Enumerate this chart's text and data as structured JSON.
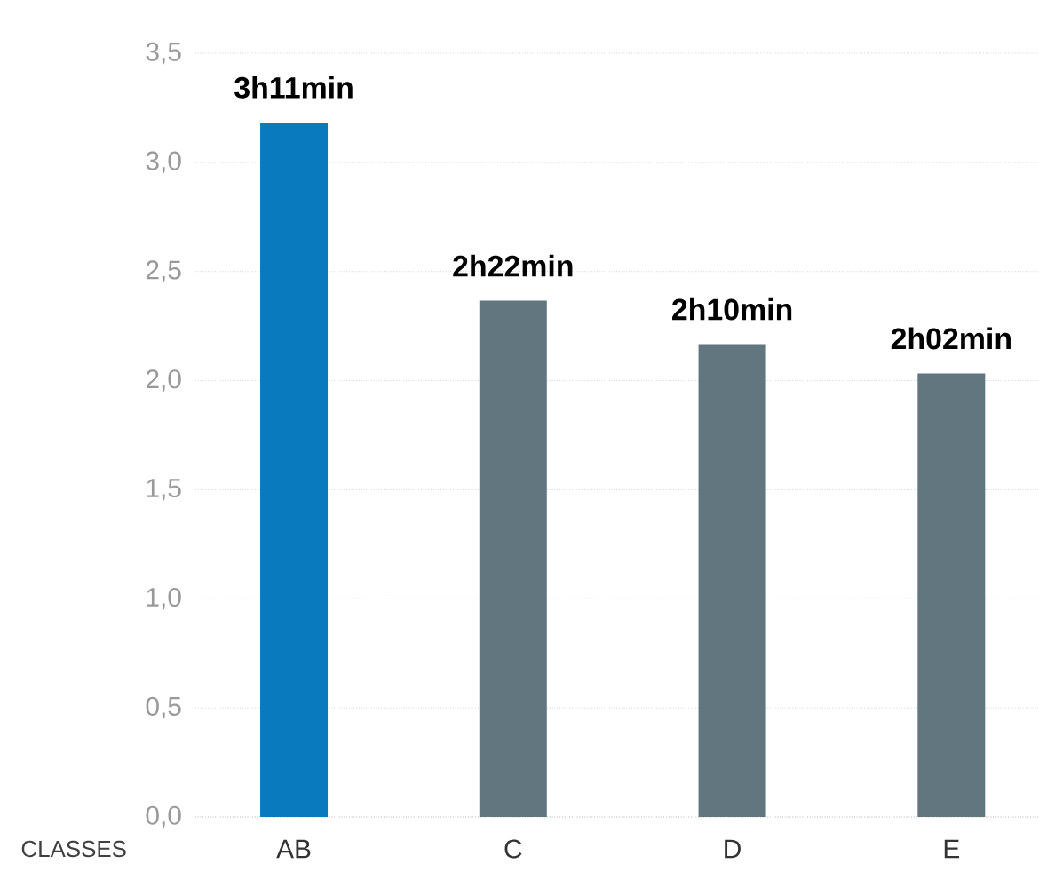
{
  "chart_data": {
    "type": "bar",
    "xlabel": "CLASSES",
    "categories": [
      "AB",
      "C",
      "D",
      "E"
    ],
    "values": [
      3.183,
      2.367,
      2.167,
      2.033
    ],
    "colors": [
      "#0a7abf",
      "#62767f",
      "#62767f",
      "#62767f"
    ],
    "value_labels": [
      "3h11min",
      "2h22min",
      "2h10min",
      "2h02min"
    ],
    "ylim": [
      0,
      3.5
    ],
    "yticks": [
      {
        "value": 0,
        "label": "0,0"
      },
      {
        "value": 0.5,
        "label": "0,5"
      },
      {
        "value": 1,
        "label": "1,0"
      },
      {
        "value": 1.5,
        "label": "1,5"
      },
      {
        "value": 2,
        "label": "2,0"
      },
      {
        "value": 2.5,
        "label": "2,5"
      },
      {
        "value": 3,
        "label": "3,0"
      },
      {
        "value": 3.5,
        "label": "3,5"
      }
    ],
    "grid": "y"
  }
}
